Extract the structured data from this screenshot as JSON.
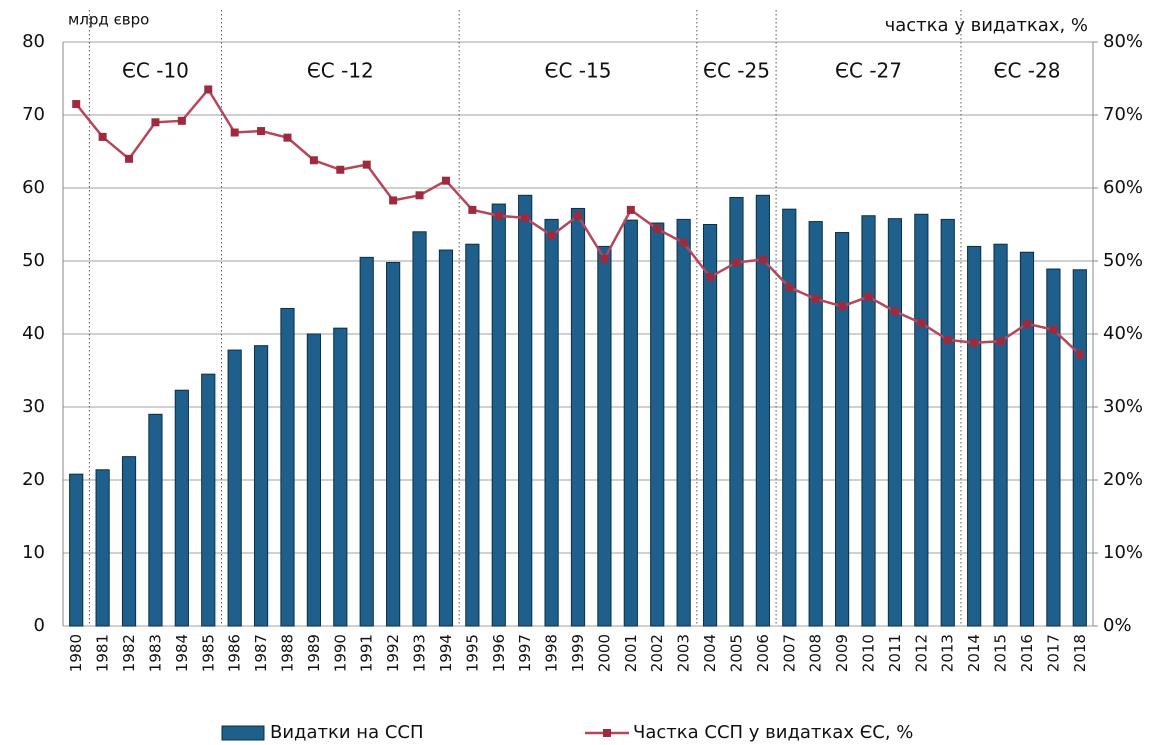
{
  "chart_data": {
    "type": "bar",
    "left_axis_label": "млрд євро",
    "right_axis_label": "частка у видатках, %",
    "categories": [
      "1980",
      "1981",
      "1982",
      "1983",
      "1984",
      "1985",
      "1986",
      "1987",
      "1988",
      "1989",
      "1990",
      "1991",
      "1992",
      "1993",
      "1994",
      "1995",
      "1996",
      "1997",
      "1998",
      "1999",
      "2000",
      "2001",
      "2002",
      "2003",
      "2004",
      "2005",
      "2006",
      "2007",
      "2008",
      "2009",
      "2010",
      "2011",
      "2012",
      "2013",
      "2014",
      "2015",
      "2016",
      "2017",
      "2018"
    ],
    "series": [
      {
        "name": "Видатки на ССП",
        "type": "bar",
        "color": "#1f5f8b",
        "values": [
          20.8,
          21.4,
          23.2,
          29.0,
          32.3,
          34.5,
          37.8,
          38.4,
          43.5,
          40.0,
          40.8,
          50.5,
          49.8,
          54.0,
          51.5,
          52.3,
          57.8,
          59.0,
          55.7,
          57.2,
          52.0,
          55.6,
          55.2,
          55.7,
          55.0,
          58.7,
          59.0,
          57.1,
          55.4,
          53.9,
          56.2,
          55.8,
          56.4,
          55.7,
          52.0,
          52.3,
          51.2,
          48.9,
          48.8
        ]
      },
      {
        "name": "Частка ССП у видатках ЄС, %",
        "type": "line",
        "axis": "y2",
        "color": "#b5475a",
        "values": [
          71.5,
          67.0,
          64.0,
          69.0,
          69.2,
          73.5,
          67.6,
          67.8,
          66.9,
          63.8,
          62.5,
          63.2,
          58.3,
          59.0,
          61.0,
          57.0,
          56.2,
          55.9,
          53.5,
          56.2,
          50.3,
          57.0,
          54.4,
          52.5,
          47.8,
          49.8,
          50.2,
          46.4,
          44.8,
          43.8,
          45.1,
          43.1,
          41.5,
          39.2,
          38.8,
          39.0,
          41.4,
          40.6,
          37.2
        ]
      }
    ],
    "eras": [
      {
        "label": "ЄС -10",
        "from": "1981",
        "to": "1985"
      },
      {
        "label": "ЄС -12",
        "from": "1986",
        "to": "1994"
      },
      {
        "label": "ЄС -15",
        "from": "1995",
        "to": "2003"
      },
      {
        "label": "ЄС -25",
        "from": "2004",
        "to": "2006"
      },
      {
        "label": "ЄС -27",
        "from": "2007",
        "to": "2013"
      },
      {
        "label": "ЄС -28",
        "from": "2014",
        "to": "2018"
      }
    ],
    "ylim": [
      0,
      80
    ],
    "yticks": [
      0,
      10,
      20,
      30,
      40,
      50,
      60,
      70,
      80
    ],
    "y2lim": [
      0,
      80
    ],
    "y2ticks": [
      {
        "value": 0,
        "label": "0%"
      },
      {
        "value": 10,
        "label": "10%"
      },
      {
        "value": 20,
        "label": "20%"
      },
      {
        "value": 30,
        "label": "30%"
      },
      {
        "value": 40,
        "label": "40%"
      },
      {
        "value": 50,
        "label": "50%"
      },
      {
        "value": 60,
        "label": "60%"
      },
      {
        "value": 70,
        "label": "70%"
      },
      {
        "value": 80,
        "label": "80%"
      }
    ],
    "grid": true,
    "legend": "bottom"
  }
}
